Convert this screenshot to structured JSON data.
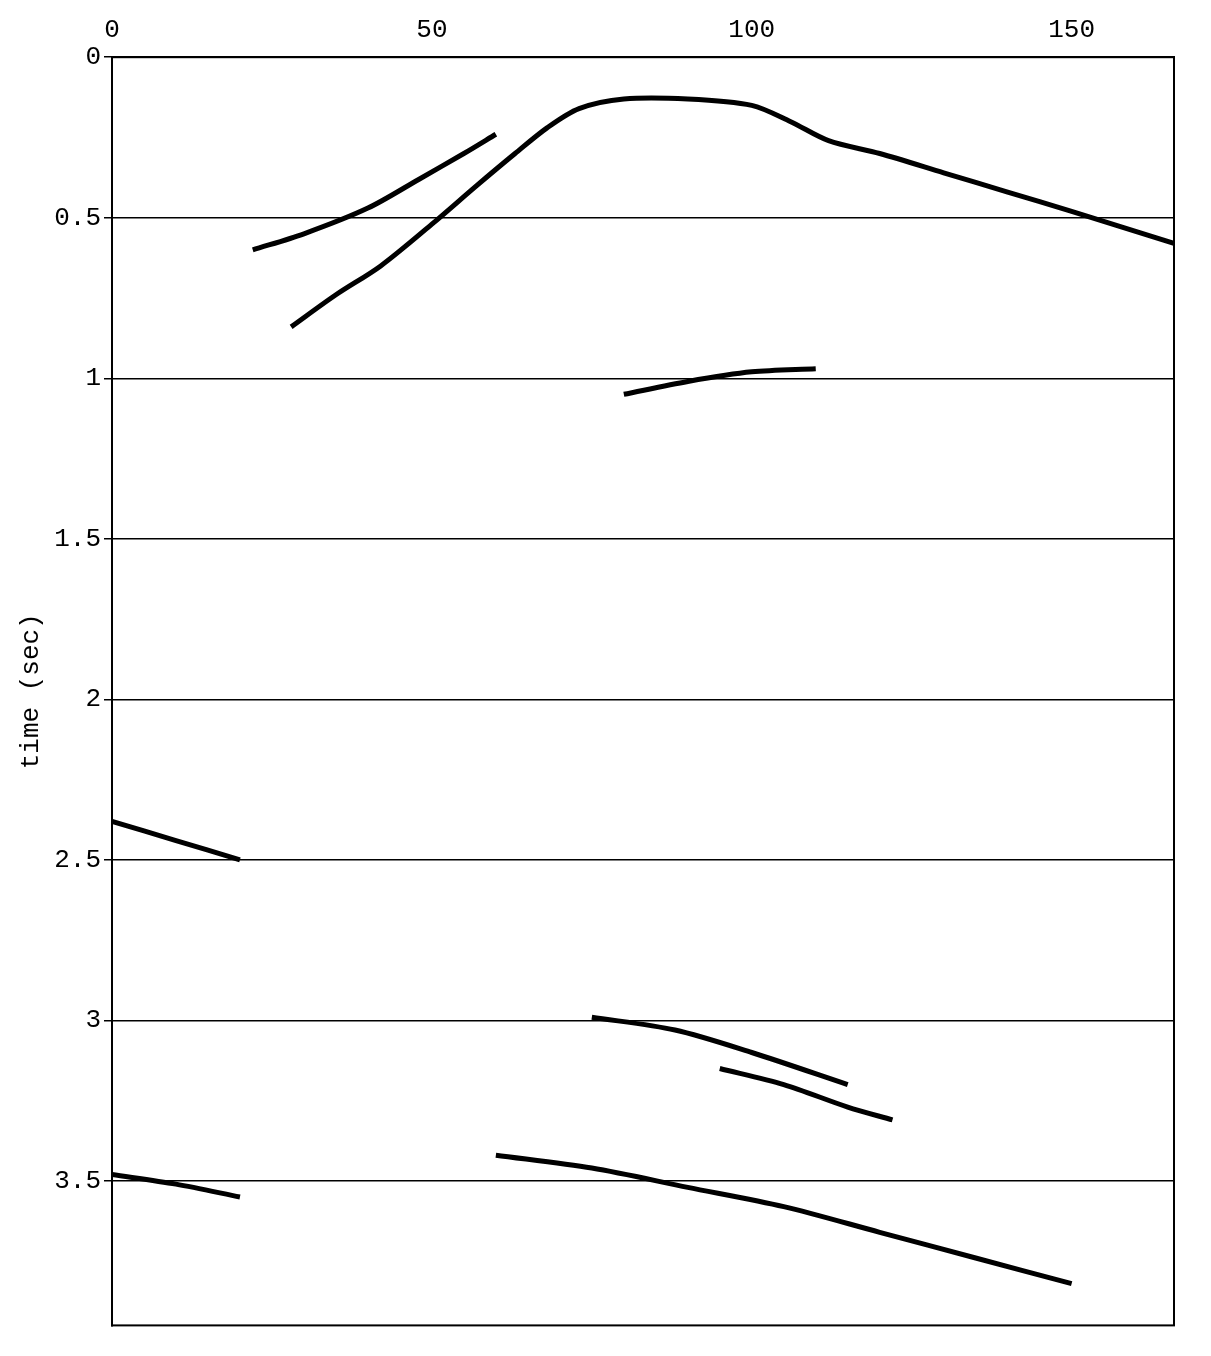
{
  "chart_data": {
    "type": "line",
    "ylabel": "time (sec)",
    "xlim": [
      0,
      166
    ],
    "xticks": [
      0,
      50,
      100,
      150
    ],
    "ylim": [
      3.95,
      0
    ],
    "yticks": [
      0,
      0.5,
      1,
      1.5,
      2,
      2.5,
      3,
      3.5
    ],
    "grid": true,
    "color": "#000000",
    "marker": "none",
    "line_style": "solid",
    "series": [
      {
        "x": [
          28,
          35,
          42,
          50,
          57,
          63,
          68,
          73,
          80,
          90,
          100,
          106,
          112,
          120,
          130,
          140,
          150,
          158,
          166
        ],
        "values": [
          0.84,
          0.74,
          0.65,
          0.52,
          0.4,
          0.3,
          0.22,
          0.16,
          0.13,
          0.13,
          0.15,
          0.2,
          0.26,
          0.3,
          0.36,
          0.42,
          0.48,
          0.53,
          0.58
        ]
      },
      {
        "x": [
          22,
          30,
          40,
          48,
          55,
          60
        ],
        "values": [
          0.6,
          0.55,
          0.47,
          0.38,
          0.3,
          0.24
        ]
      },
      {
        "x": [
          80,
          90,
          100,
          110
        ],
        "values": [
          1.05,
          1.01,
          0.98,
          0.97
        ]
      },
      {
        "x": [
          0,
          10,
          20
        ],
        "values": [
          2.38,
          2.44,
          2.5
        ]
      },
      {
        "x": [
          75,
          88,
          100,
          115
        ],
        "values": [
          2.99,
          3.03,
          3.1,
          3.2
        ]
      },
      {
        "x": [
          95,
          105,
          115,
          122
        ],
        "values": [
          3.15,
          3.2,
          3.27,
          3.31
        ]
      },
      {
        "x": [
          0,
          10,
          20
        ],
        "values": [
          3.48,
          3.51,
          3.55
        ]
      },
      {
        "x": [
          60,
          75,
          90,
          105,
          120,
          135,
          150
        ],
        "values": [
          3.42,
          3.46,
          3.52,
          3.58,
          3.66,
          3.74,
          3.82
        ]
      }
    ]
  }
}
